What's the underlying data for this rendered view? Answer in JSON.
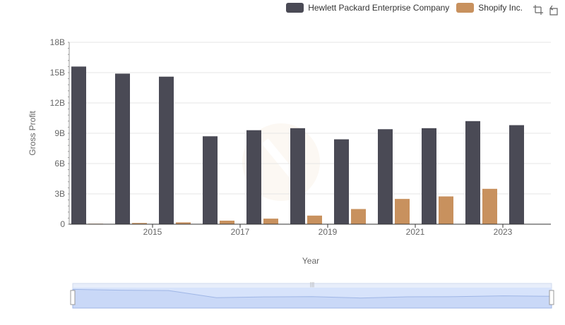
{
  "chart_data": {
    "type": "bar",
    "xlabel": "Year",
    "ylabel": "Gross Profit",
    "ylim": [
      0,
      18
    ],
    "y_ticks": [
      "0",
      "3B",
      "6B",
      "9B",
      "12B",
      "15B",
      "18B"
    ],
    "x_tick_labels": [
      "2015",
      "2017",
      "2019",
      "2021",
      "2023"
    ],
    "categories": [
      "2014",
      "2015",
      "2016",
      "2017",
      "2018",
      "2019",
      "2020",
      "2021",
      "2022",
      "2023",
      "2024"
    ],
    "series": [
      {
        "name": "Hewlett Packard Enterprise Company",
        "color": "#4a4a55",
        "values": [
          15.6,
          14.9,
          14.6,
          8.7,
          9.3,
          9.5,
          8.4,
          9.4,
          9.5,
          10.2,
          9.8
        ]
      },
      {
        "name": "Shopify Inc.",
        "color": "#c8915e",
        "values": [
          0.05,
          0.12,
          0.18,
          0.35,
          0.55,
          0.85,
          1.5,
          2.5,
          2.75,
          3.5,
          null
        ]
      }
    ],
    "grid": true,
    "legend_position": "top-right"
  },
  "toolbar": {
    "icons": [
      "zoom-icon",
      "restore-icon"
    ]
  }
}
